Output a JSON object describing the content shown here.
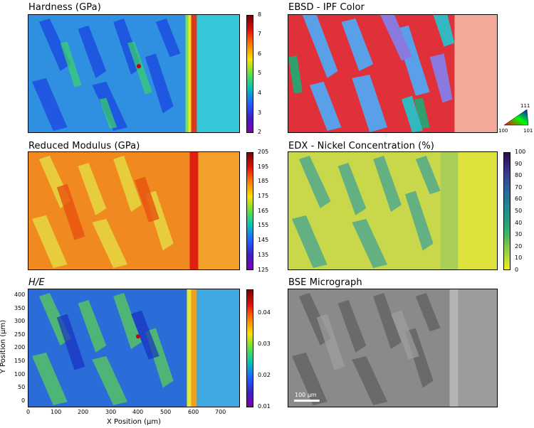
{
  "panels": {
    "hardness": {
      "title": "Hardness (GPa)",
      "cbar_ticks": [
        "8",
        "7",
        "6",
        "5",
        "4",
        "3",
        "2"
      ]
    },
    "ebsd": {
      "title": "EBSD - IPF Color",
      "key_labels": {
        "top": "111",
        "left": "100",
        "right": "101"
      }
    },
    "modulus": {
      "title": "Reduced Modulus (GPa)",
      "cbar_ticks": [
        "205",
        "195",
        "185",
        "175",
        "165",
        "155",
        "145",
        "135",
        "125"
      ]
    },
    "edx": {
      "title": "EDX - Nickel Concentration (%)",
      "cbar_ticks": [
        "100",
        "90",
        "80",
        "70",
        "60",
        "50",
        "40",
        "30",
        "20",
        "10",
        "0"
      ]
    },
    "he": {
      "title": "H/E",
      "cbar_ticks": [
        "0.04",
        "0.03",
        "0.02",
        "0.01"
      ]
    },
    "bse": {
      "title": "BSE Micrograph",
      "scale_label": "100 μm"
    }
  },
  "axes": {
    "y_title": "Y Position (μm)",
    "x_title": "X Position (μm)",
    "y_ticks": [
      "400",
      "350",
      "300",
      "250",
      "200",
      "150",
      "100",
      "50",
      "0"
    ],
    "x_ticks": [
      "0",
      "100",
      "200",
      "300",
      "400",
      "500",
      "600",
      "700"
    ]
  }
}
